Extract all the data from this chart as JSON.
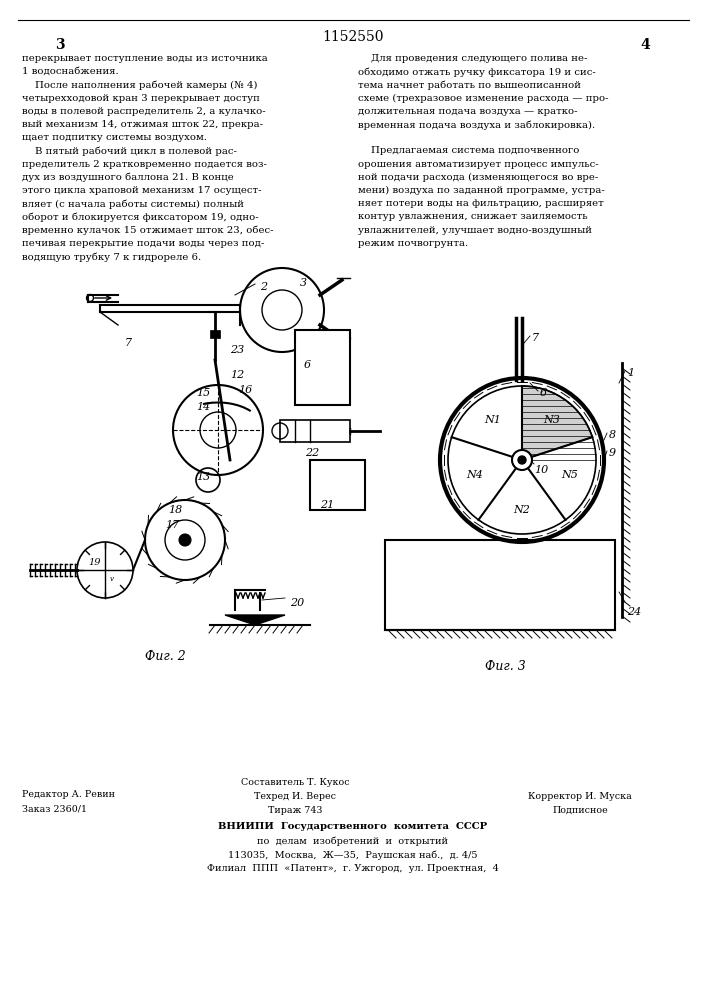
{
  "page_number_center": "1152550",
  "page_col_left": "3",
  "page_col_right": "4",
  "text_left": [
    "перекрывает поступление воды из источника",
    "1 водоснабжения.",
    "    После наполнения рабочей камеры (№ 4)",
    "четырехходовой кран 3 перекрывает доступ",
    "воды в полевой распределитель 2, а кулачко-",
    "вый механизм 14, отжимая шток 22, прекра-",
    "щает подпитку системы воздухом.",
    "    В пятый рабочий цикл в полевой рас-",
    "пределитель 2 кратковременно подается воз-",
    "дух из воздушного баллона 21. В конце",
    "этого цикла храповой механизм 17 осущест-",
    "вляет (с начала работы системы) полный",
    "оборот и блокируется фиксатором 19, одно-",
    "временно кулачок 15 отжимает шток 23, обес-",
    "печивая перекрытие подачи воды через под-",
    "водящую трубку 7 к гидрореле 6."
  ],
  "text_right": [
    "    Для проведения следующего полива не-",
    "обходимо отжать ручку фиксатора 19 и сис-",
    "тема начнет работать по вышеописанной",
    "схеме (трехразовое изменение расхода — про-",
    "должительная подача воздуха — кратко-",
    "временная подача воздуха и заблокировка).",
    "",
    "    Предлагаемая система подпочвенного",
    "орошения автоматизирует процесс импульс-",
    "ной подачи расхода (изменяющегося во вре-",
    "мени) воздуха по заданной программе, устра-",
    "няет потери воды на фильтрацию, расширяет",
    "контур увлажнения, снижает заиляемость",
    "увлажнителей, улучшает водно-воздушный",
    "режим почвогрунта."
  ],
  "fig2_label": "Фиг. 2",
  "fig3_label": "Фиг. 3",
  "footer_left1": "Редактор А. Ревин",
  "footer_left2": "Заказ 2360/1",
  "footer_center1": "Составитель Т. Кукос",
  "footer_center2": "Техред И. Верес",
  "footer_center3": "Тираж 743",
  "footer_right1": "Корректор И. Муска",
  "footer_right2": "Подписное",
  "footer_main1": "ВНИИПИ  Государственного  комитета  СССР",
  "footer_main2": "по  делам  изобретений  и  открытий",
  "footer_main3": "113035,  Москва,  Ж—35,  Раушская наб.,  д. 4/5",
  "footer_main4": "Филиал  ППП  «Патент»,  г. Ужгород,  ул. Проектная,  4",
  "bg_color": "#ffffff",
  "text_color": "#000000"
}
